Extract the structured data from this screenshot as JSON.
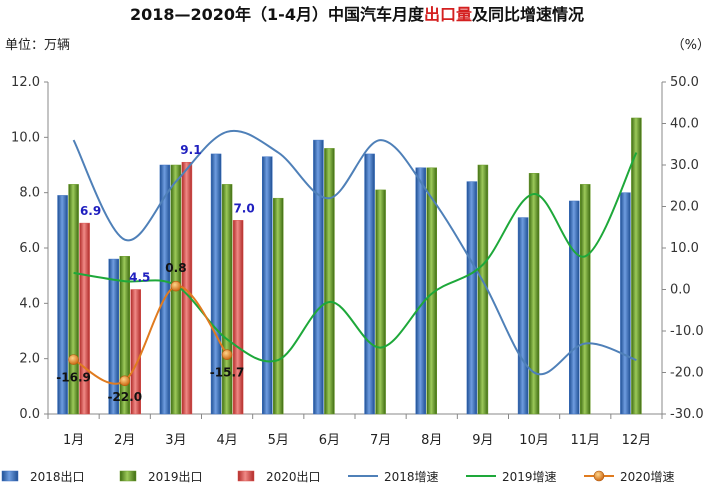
{
  "chart_data": {
    "type": "bar",
    "title_parts": [
      {
        "text": "2018—2020年（1-4月）中国汽车月度",
        "color": "#111111"
      },
      {
        "text": "出口量",
        "color": "#d42020"
      },
      {
        "text": "及同比增速情况",
        "color": "#111111"
      }
    ],
    "left_unit": "单位：万辆",
    "right_unit": "（%）",
    "categories": [
      "1月",
      "2月",
      "3月",
      "4月",
      "5月",
      "6月",
      "7月",
      "8月",
      "9月",
      "10月",
      "11月",
      "12月"
    ],
    "left_ylim": [
      0,
      12
    ],
    "left_ticks": [
      "0.0",
      "2.0",
      "4.0",
      "6.0",
      "8.0",
      "10.0",
      "12.0"
    ],
    "right_ylim": [
      -30,
      50
    ],
    "right_ticks": [
      "-30.0",
      "-20.0",
      "-10.0",
      "0.0",
      "10.0",
      "20.0",
      "30.0",
      "40.0",
      "50.0"
    ],
    "bar_series": [
      {
        "name": "2018出口",
        "color": "#3a6fbf",
        "values": [
          7.9,
          5.6,
          9.0,
          9.4,
          9.3,
          9.9,
          9.4,
          8.9,
          8.4,
          7.1,
          7.7,
          8.0
        ]
      },
      {
        "name": "2019出口",
        "color": "#6a9a2a",
        "values": [
          8.3,
          5.7,
          9.0,
          8.3,
          7.8,
          9.6,
          8.1,
          8.9,
          9.0,
          8.7,
          8.3,
          10.7
        ]
      },
      {
        "name": "2020出口",
        "color": "#d9534f",
        "values": [
          6.9,
          4.5,
          9.1,
          7.0
        ],
        "labels": [
          "6.9",
          "4.5",
          "9.1",
          "7.0"
        ],
        "label_color": "#1f1fbf"
      }
    ],
    "line_series": [
      {
        "name": "2018增速",
        "color": "#4f80b8",
        "values": [
          36,
          12,
          26,
          38,
          33,
          22,
          36,
          22,
          2,
          -20,
          -13,
          -17
        ]
      },
      {
        "name": "2019增速",
        "color": "#1ea83a",
        "values": [
          4,
          2,
          1,
          -12,
          -17,
          -3,
          -14,
          -1,
          6,
          23,
          8,
          33
        ]
      },
      {
        "name": "2020增速",
        "color": "#e07b1f",
        "values": [
          -16.9,
          -22.0,
          0.8,
          -15.7
        ],
        "labels": [
          "-16.9",
          "-22.0",
          "0.8",
          "-15.7"
        ],
        "label_color": "#111111"
      }
    ],
    "legend_position": "bottom",
    "grid": false
  }
}
